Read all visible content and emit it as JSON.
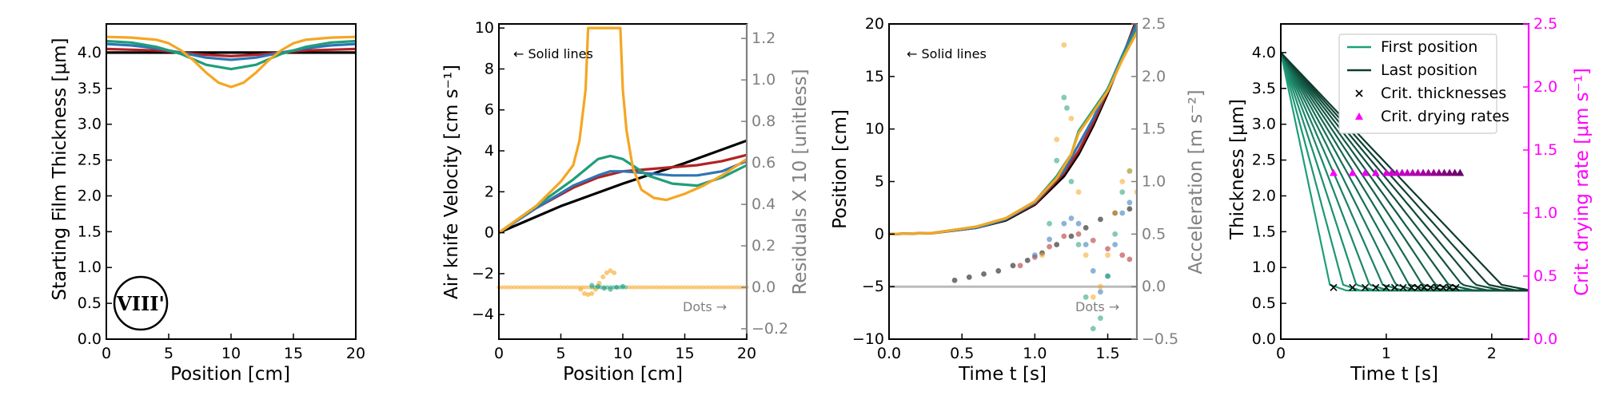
{
  "chart_data": [
    {
      "type": "line",
      "xlabel": "Position [cm]",
      "ylabel": "Starting Film Thickness [μm]",
      "xlim": [
        0,
        20
      ],
      "ylim": [
        0,
        4.4
      ],
      "xticks": [
        "0",
        "5",
        "10",
        "15",
        "20"
      ],
      "yticks": [
        "0.0",
        "0.5",
        "1.0",
        "1.5",
        "2.0",
        "2.5",
        "3.0",
        "3.5",
        "4.0"
      ],
      "badge": "VIII'",
      "colors": [
        "#000000",
        "#b22222",
        "#2e75b6",
        "#1f9e7a",
        "#f5a623"
      ],
      "series": [
        {
          "color": "#000000",
          "x": [
            0,
            20
          ],
          "y": [
            4.0,
            4.0
          ]
        },
        {
          "color": "#b22222",
          "x": [
            0,
            2,
            4,
            6,
            8,
            10,
            12,
            14,
            16,
            18,
            20
          ],
          "y": [
            4.05,
            4.04,
            4.03,
            4.0,
            3.97,
            3.95,
            3.97,
            4.0,
            4.03,
            4.04,
            4.05
          ]
        },
        {
          "color": "#2e75b6",
          "x": [
            0,
            2,
            4,
            6,
            8,
            10,
            12,
            14,
            16,
            18,
            20
          ],
          "y": [
            4.12,
            4.1,
            4.06,
            4.0,
            3.93,
            3.9,
            3.93,
            4.0,
            4.06,
            4.1,
            4.12
          ]
        },
        {
          "color": "#1f9e7a",
          "x": [
            0,
            2,
            4,
            6,
            8,
            10,
            12,
            14,
            16,
            18,
            20
          ],
          "y": [
            4.16,
            4.14,
            4.08,
            3.98,
            3.83,
            3.77,
            3.83,
            3.98,
            4.08,
            4.14,
            4.16
          ]
        },
        {
          "color": "#f5a623",
          "x": [
            0,
            2,
            4,
            5,
            6,
            7,
            8,
            9,
            10,
            11,
            12,
            13,
            14,
            15,
            16,
            18,
            20
          ],
          "y": [
            4.22,
            4.21,
            4.18,
            4.13,
            4.03,
            3.89,
            3.72,
            3.58,
            3.52,
            3.58,
            3.72,
            3.89,
            4.03,
            4.13,
            4.18,
            4.21,
            4.22
          ]
        }
      ]
    },
    {
      "type": "line",
      "xlabel": "Position [cm]",
      "ylabel": "Air knife Velocity [cm s⁻¹]",
      "y2label": "Residuals X 10 [unitless]",
      "xlim": [
        0,
        20
      ],
      "ylim": [
        -5.2,
        10.2
      ],
      "y2lim": [
        -0.25,
        1.27
      ],
      "xticks": [
        "0",
        "5",
        "10",
        "15",
        "20"
      ],
      "yticks": [
        "−4",
        "−2",
        "0",
        "2",
        "4",
        "6",
        "8",
        "10"
      ],
      "y2ticks": [
        "−0.2",
        "0.0",
        "0.2",
        "0.4",
        "0.6",
        "0.8",
        "1.0",
        "1.2"
      ],
      "left_note": "← Solid lines",
      "right_note": "Dots →",
      "series": [
        {
          "color": "#000000",
          "x": [
            0,
            5,
            10,
            15,
            20
          ],
          "y": [
            0.0,
            1.3,
            2.4,
            3.4,
            4.5
          ]
        },
        {
          "color": "#b22222",
          "x": [
            0,
            3,
            6,
            8,
            10,
            12,
            14,
            16,
            18,
            20
          ],
          "y": [
            0.0,
            1.2,
            2.2,
            2.7,
            3.0,
            3.1,
            3.2,
            3.3,
            3.5,
            3.8
          ]
        },
        {
          "color": "#2e75b6",
          "x": [
            0,
            3,
            6,
            8,
            9,
            10,
            12,
            14,
            16,
            18,
            20
          ],
          "y": [
            0.0,
            1.2,
            2.3,
            2.8,
            3.0,
            3.0,
            2.9,
            2.8,
            2.8,
            3.0,
            3.5
          ]
        },
        {
          "color": "#1f9e7a",
          "x": [
            0,
            3,
            6,
            7,
            8,
            9,
            10,
            11,
            12,
            14,
            16,
            18,
            20
          ],
          "y": [
            0.0,
            1.3,
            2.6,
            3.1,
            3.6,
            3.75,
            3.6,
            3.2,
            2.8,
            2.4,
            2.3,
            2.7,
            3.3
          ]
        },
        {
          "color": "#f5a623",
          "x": [
            0,
            3,
            5,
            6,
            6.5,
            7,
            7.2,
            9.8,
            10,
            10.3,
            10.8,
            11.5,
            12.5,
            13.5,
            15,
            16.5,
            18,
            20
          ],
          "y": [
            0.0,
            1.3,
            2.5,
            3.3,
            4.5,
            7.0,
            10.0,
            10.0,
            7.0,
            5.0,
            3.2,
            2.1,
            1.7,
            1.6,
            1.9,
            2.3,
            2.8,
            3.6
          ]
        }
      ],
      "residual_dots": [
        {
          "color": "#f5a623",
          "x": [
            6.6,
            6.9,
            7.2,
            7.5,
            7.8,
            8.1,
            8.4,
            8.7,
            9.0,
            9.3
          ],
          "y": [
            -0.01,
            -0.03,
            -0.035,
            -0.03,
            -0.01,
            0.02,
            0.05,
            0.07,
            0.08,
            0.07
          ]
        },
        {
          "color": "#1f9e7a",
          "x": [
            7.5,
            8,
            8.5,
            9,
            9.5,
            10
          ],
          "y": [
            0.01,
            0.005,
            -0.005,
            -0.01,
            0.0,
            0.005
          ]
        }
      ]
    },
    {
      "type": "line",
      "xlabel": "Time t [s]",
      "ylabel": "Position [cm]",
      "y2label": "Acceleration [m s⁻²]",
      "xlim": [
        0.0,
        1.7
      ],
      "ylim": [
        -10,
        20
      ],
      "y2lim": [
        -0.5,
        2.5
      ],
      "xticks": [
        "0.0",
        "0.5",
        "1.0",
        "1.5"
      ],
      "yticks": [
        "−10",
        "−5",
        "0",
        "5",
        "10",
        "15",
        "20"
      ],
      "y2ticks": [
        "−0.5",
        "0.0",
        "0.5",
        "1.0",
        "1.5",
        "2.0",
        "2.5"
      ],
      "left_note": "← Solid lines",
      "right_note": "Dots →",
      "series": [
        {
          "color": "#000000",
          "x": [
            0,
            0.3,
            0.6,
            0.8,
            1.0,
            1.2,
            1.3,
            1.4,
            1.5,
            1.6,
            1.7
          ],
          "y": [
            0.0,
            0.1,
            0.6,
            1.3,
            2.8,
            5.5,
            7.6,
            10.3,
            13.4,
            16.8,
            20.5
          ]
        },
        {
          "color": "#b22222",
          "x": [
            0,
            0.3,
            0.6,
            0.8,
            1.0,
            1.2,
            1.3,
            1.4,
            1.5,
            1.6,
            1.7
          ],
          "y": [
            0.0,
            0.1,
            0.6,
            1.4,
            2.9,
            5.8,
            7.9,
            10.6,
            13.6,
            16.9,
            20.3
          ]
        },
        {
          "color": "#2e75b6",
          "x": [
            0,
            0.3,
            0.6,
            0.8,
            1.0,
            1.2,
            1.3,
            1.4,
            1.5,
            1.6,
            1.7
          ],
          "y": [
            0.0,
            0.1,
            0.6,
            1.4,
            3.0,
            6.0,
            8.5,
            11.0,
            13.8,
            17.0,
            20.0
          ]
        },
        {
          "color": "#1f9e7a",
          "x": [
            0,
            0.3,
            0.6,
            0.8,
            1.0,
            1.15,
            1.25,
            1.3,
            1.4,
            1.5,
            1.6,
            1.7
          ],
          "y": [
            0.0,
            0.1,
            0.7,
            1.5,
            3.1,
            5.5,
            7.6,
            9.8,
            11.8,
            13.8,
            16.8,
            19.5
          ]
        },
        {
          "color": "#f5a623",
          "x": [
            0,
            0.3,
            0.6,
            0.8,
            1.0,
            1.15,
            1.25,
            1.3,
            1.4,
            1.5,
            1.6,
            1.7
          ],
          "y": [
            0.0,
            0.1,
            0.7,
            1.5,
            3.1,
            5.3,
            7.6,
            9.6,
            11.6,
            13.6,
            16.6,
            19.2
          ]
        }
      ],
      "gray_line": {
        "color": "#bbbbbb",
        "x": [
          0.0,
          1.7
        ],
        "y": [
          0.0,
          0.0
        ]
      },
      "accel_dots": [
        {
          "color": "#000000",
          "x": [
            0.45,
            0.55,
            0.65,
            0.75,
            0.85,
            0.95,
            1.05,
            1.15,
            1.25,
            1.35,
            1.45,
            1.55,
            1.65
          ],
          "y": [
            0.06,
            0.09,
            0.12,
            0.15,
            0.2,
            0.25,
            0.32,
            0.4,
            0.48,
            0.56,
            0.64,
            0.7,
            0.74
          ]
        },
        {
          "color": "#b22222",
          "x": [
            0.9,
            1.0,
            1.1,
            1.2,
            1.3,
            1.4,
            1.5,
            1.6,
            1.65
          ],
          "y": [
            0.2,
            0.28,
            0.38,
            0.48,
            0.5,
            0.44,
            0.36,
            0.3,
            0.26
          ]
        },
        {
          "color": "#2e75b6",
          "x": [
            1.0,
            1.1,
            1.2,
            1.25,
            1.3,
            1.35,
            1.4,
            1.45,
            1.5,
            1.55,
            1.6,
            1.65
          ],
          "y": [
            0.3,
            0.45,
            0.6,
            0.65,
            0.6,
            0.4,
            0.15,
            -0.05,
            0.1,
            0.4,
            0.7,
            0.8
          ]
        },
        {
          "color": "#1f9e7a",
          "x": [
            1.1,
            1.15,
            1.2,
            1.22,
            1.25,
            1.3,
            1.35,
            1.4,
            1.45,
            1.5,
            1.55,
            1.6,
            1.65
          ],
          "y": [
            0.6,
            1.2,
            1.8,
            1.7,
            1.0,
            0.4,
            -0.1,
            -0.4,
            -0.3,
            0.1,
            0.5,
            0.9,
            1.1
          ]
        },
        {
          "color": "#f5a623",
          "x": [
            1.05,
            1.15,
            1.2,
            1.25,
            1.3,
            1.35,
            1.4,
            1.45,
            1.5,
            1.55,
            1.6,
            1.65,
            1.7
          ],
          "y": [
            0.3,
            1.4,
            2.3,
            1.6,
            0.9,
            0.3,
            -0.1,
            0.0,
            0.3,
            0.7,
            1.0,
            1.1,
            0.9
          ]
        }
      ]
    },
    {
      "type": "line",
      "xlabel": "Time t [s]",
      "ylabel": "Thickness [μm]",
      "y2label": "Crit. drying rate [μm s⁻¹]",
      "xlim": [
        0,
        2.35
      ],
      "ylim": [
        0,
        4.4
      ],
      "y2lim": [
        0,
        2.5
      ],
      "xticks": [
        "0",
        "1",
        "2"
      ],
      "yticks": [
        "0.0",
        "0.5",
        "1.0",
        "1.5",
        "2.0",
        "2.5",
        "3.0",
        "3.5",
        "4.0"
      ],
      "y2ticks": [
        "0.0",
        "0.5",
        "1.0",
        "1.5",
        "2.0",
        "2.5"
      ],
      "legend": [
        {
          "label": "First position",
          "color": "#1f9e7a",
          "kind": "line"
        },
        {
          "label": "Last position",
          "color": "#0e3b2e",
          "kind": "line"
        },
        {
          "label": "Crit. thicknesses",
          "color": "#000000",
          "kind": "x"
        },
        {
          "label": "Crit. drying rates",
          "color": "#ff00ff",
          "kind": "triangle"
        }
      ],
      "first_color": "#1f9e7a",
      "last_color": "#0e3b2e",
      "start_thickness": 4.0,
      "final_thickness": 0.68,
      "crit_thickness_times": [
        0.5,
        0.68,
        0.8,
        0.9,
        1.0,
        1.08,
        1.16,
        1.24,
        1.3,
        1.36,
        1.42,
        1.48,
        1.54,
        1.6,
        1.66
      ],
      "crit_thickness_value": 0.72,
      "crit_rate_times": [
        0.5,
        0.68,
        0.8,
        0.9,
        1.0,
        1.05,
        1.1,
        1.15,
        1.2,
        1.25,
        1.3,
        1.35,
        1.4,
        1.45,
        1.5,
        1.55,
        1.6,
        1.65,
        1.7
      ],
      "crit_rate_values": [
        1.32,
        1.32,
        1.32,
        1.32,
        1.32,
        1.32,
        1.32,
        1.32,
        1.32,
        1.32,
        1.32,
        1.32,
        1.32,
        1.32,
        1.32,
        1.32,
        1.32,
        1.32,
        1.32
      ],
      "curve_count": 14
    }
  ]
}
